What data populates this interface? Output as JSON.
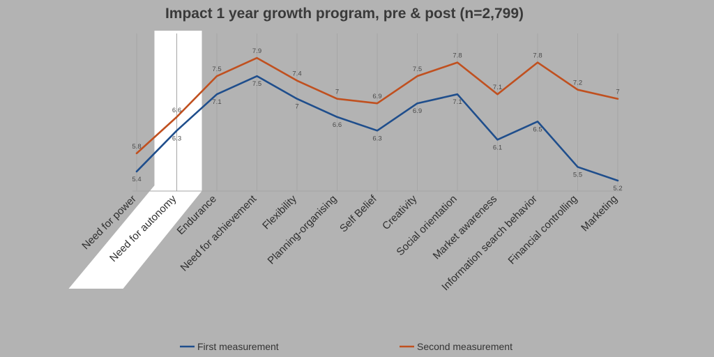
{
  "chart_data": {
    "type": "line",
    "title": "Impact 1 year growth program, pre & post (n=2,799)",
    "xlabel": "",
    "ylabel": "",
    "categories": [
      "Need for power",
      "Need for autonomy",
      "Endurance",
      "Need for achievement",
      "Flexibility",
      "Planning-organising",
      "Self Belief",
      "Creativity",
      "Social orientation",
      "Market awareness",
      "Information search behavior",
      "Financial controlling",
      "Marketing"
    ],
    "series": [
      {
        "name": "First measurement",
        "color": "#1f4e8c",
        "values": [
          5.4,
          6.3,
          7.1,
          7.5,
          7,
          6.6,
          6.3,
          6.9,
          7.1,
          6.1,
          6.5,
          5.5,
          5.2
        ],
        "labels": [
          "5.4",
          "6.3",
          "7.1",
          "7.5",
          "7",
          "6.6",
          "6.3",
          "6.9",
          "7.1",
          "6.1",
          "6.5",
          "5.5",
          "5.2"
        ]
      },
      {
        "name": "Second measurement",
        "color": "#c0501f",
        "values": [
          5.8,
          6.6,
          7.5,
          7.9,
          7.4,
          7,
          6.9,
          7.5,
          7.8,
          7.1,
          7.8,
          7.2,
          7
        ],
        "labels": [
          "5.8",
          "6.6",
          "7.5",
          "7.9",
          "7.4",
          "7",
          "6.9",
          "7.5",
          "7.8",
          "7.1",
          "7.8",
          "7.2",
          "7"
        ]
      }
    ],
    "ylim": [
      5,
      8.5
    ],
    "grid": "vertical",
    "legend": "bottom",
    "highlight_category": "Need for autonomy",
    "highlight_color": "#ffffff"
  }
}
